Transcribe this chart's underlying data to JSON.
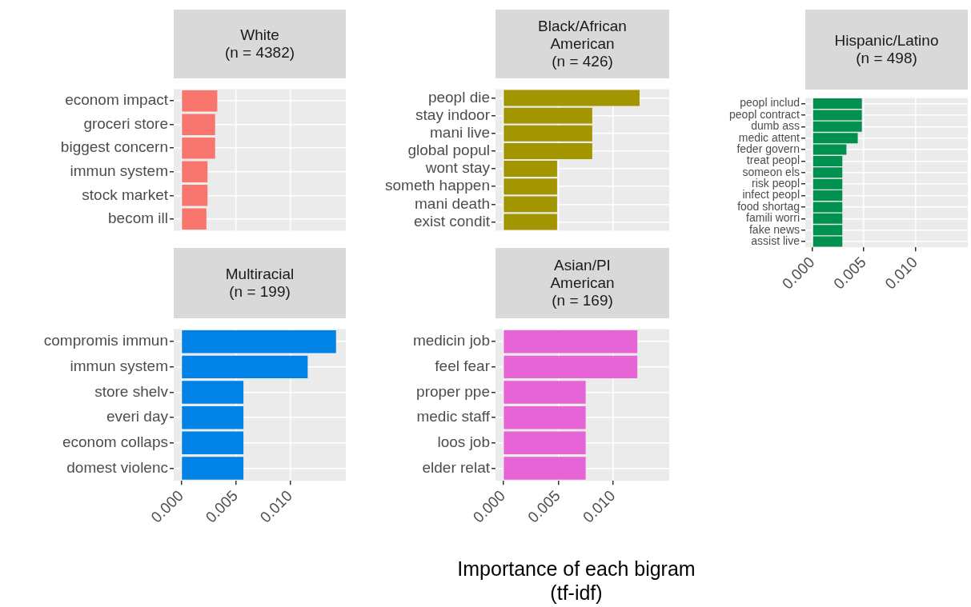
{
  "chart_data": [
    {
      "type": "bar",
      "orientation": "horizontal",
      "title": "White\n(n = 4382)",
      "categories": [
        "econom impact",
        "groceri store",
        "biggest concern",
        "immun system",
        "stock market",
        "becom ill"
      ],
      "values": [
        0.0033,
        0.0031,
        0.0031,
        0.0024,
        0.0024,
        0.0023
      ],
      "color": "#f8766d",
      "xlim": [
        -0.0007,
        0.0151
      ],
      "xticks": [
        0,
        0.005,
        0.01
      ],
      "grid": true,
      "tick_labels": "y"
    },
    {
      "type": "bar",
      "orientation": "horizontal",
      "title": "Black/African\nAmerican\n(n = 426)",
      "categories": [
        "peopl die",
        "stay indoor",
        "mani live",
        "global popul",
        "wont stay",
        "someth happen",
        "mani death",
        "exist condit"
      ],
      "values": [
        0.0124,
        0.0081,
        0.0081,
        0.0081,
        0.0049,
        0.0049,
        0.0049,
        0.0049
      ],
      "color": "#a39500",
      "xlim": [
        -0.0007,
        0.0151
      ],
      "xticks": [
        0,
        0.005,
        0.01
      ],
      "grid": true,
      "tick_labels": "y"
    },
    {
      "type": "bar",
      "orientation": "horizontal",
      "title": "Hispanic/Latino\n(n = 498)",
      "categories": [
        "peopl includ",
        "peopl contract",
        "dumb ass",
        "medic attent",
        "feder govern",
        "treat peopl",
        "someon els",
        "risk peopl",
        "infect peopl",
        "food shortag",
        "famili worri",
        "fake news",
        "assist live"
      ],
      "values": [
        0.0048,
        0.0048,
        0.0048,
        0.0044,
        0.0033,
        0.0029,
        0.0029,
        0.0029,
        0.0029,
        0.0029,
        0.0029,
        0.0029,
        0.0029
      ],
      "color": "#00904f",
      "xlim": [
        -0.0007,
        0.0151
      ],
      "xticks": [
        {
          "value": 0,
          "label": "0.000"
        },
        {
          "value": 0.005,
          "label": "0.005"
        },
        {
          "value": 0.01,
          "label": "0.010"
        }
      ],
      "grid": true
    },
    {
      "type": "bar",
      "orientation": "horizontal",
      "title": "Multiracial\n(n = 199)",
      "categories": [
        "compromis immun",
        "immun system",
        "store shelv",
        "everi day",
        "econom collaps",
        "domest violenc"
      ],
      "values": [
        0.0142,
        0.0116,
        0.0057,
        0.0057,
        0.0057,
        0.0057
      ],
      "color": "#0082e6",
      "xlim": [
        -0.0007,
        0.0151
      ],
      "xticks": [
        {
          "value": 0,
          "label": "0.000"
        },
        {
          "value": 0.005,
          "label": "0.005"
        },
        {
          "value": 0.01,
          "label": "0.010"
        }
      ],
      "grid": true
    },
    {
      "type": "bar",
      "orientation": "horizontal",
      "title": "Asian/PI\nAmerican\n(n = 169)",
      "categories": [
        "medicin job",
        "feel fear",
        "proper ppe",
        "medic staff",
        "loos job",
        "elder relat"
      ],
      "values": [
        0.0122,
        0.0122,
        0.0075,
        0.0075,
        0.0075,
        0.0075
      ],
      "color": "#e764d6",
      "xlim": [
        -0.0007,
        0.0151
      ],
      "xticks": [
        {
          "value": 0,
          "label": "0.000"
        },
        {
          "value": 0.005,
          "label": "0.005"
        },
        {
          "value": 0.01,
          "label": "0.010"
        }
      ],
      "grid": true,
      "xlabel": "Importance of each bigram\n(tf-idf)"
    }
  ]
}
